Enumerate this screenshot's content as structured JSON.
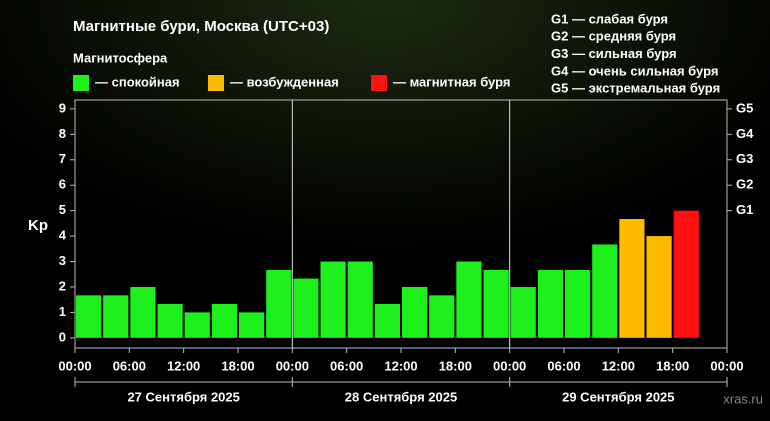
{
  "chart_data": {
    "type": "bar",
    "title": "Магнитные бури, Москва (UTC+03)",
    "subtitle": "Магнитосфера",
    "ylabel": "Kp",
    "watermark": "xras.ru",
    "x": [
      0,
      3,
      6,
      9,
      12,
      15,
      18,
      21,
      24,
      27,
      30,
      33,
      36,
      39,
      42,
      45,
      48,
      51,
      54,
      57,
      60,
      63,
      66
    ],
    "bar_width": 3,
    "series": [
      {
        "name": "— спокойная",
        "color": "#1ef01e",
        "values": [
          1.67,
          1.67,
          2,
          1.33,
          1,
          1.33,
          1,
          2.67,
          2.33,
          3,
          3,
          1.33,
          2,
          1.67,
          3,
          2.67,
          2,
          2.67,
          2.67,
          3.67,
          null,
          null,
          null
        ]
      },
      {
        "name": "— возбужденная",
        "color": "#ffbb00",
        "values": [
          null,
          null,
          null,
          null,
          null,
          null,
          null,
          null,
          null,
          null,
          null,
          null,
          null,
          null,
          null,
          null,
          null,
          null,
          null,
          null,
          4.67,
          4,
          null
        ]
      },
      {
        "name": "— магнитная буря",
        "color": "#ff1010",
        "values": [
          null,
          null,
          null,
          null,
          null,
          null,
          null,
          null,
          null,
          null,
          null,
          null,
          null,
          null,
          null,
          null,
          null,
          null,
          null,
          null,
          null,
          null,
          5
        ]
      }
    ],
    "xlim": [
      0,
      72
    ],
    "xticks": [
      {
        "value": 0,
        "label": "00:00"
      },
      {
        "value": 6,
        "label": "06:00"
      },
      {
        "value": 12,
        "label": "12:00"
      },
      {
        "value": 18,
        "label": "18:00"
      },
      {
        "value": 24,
        "label": "00:00"
      },
      {
        "value": 30,
        "label": "06:00"
      },
      {
        "value": 36,
        "label": "12:00"
      },
      {
        "value": 42,
        "label": "18:00"
      },
      {
        "value": 48,
        "label": "00:00"
      },
      {
        "value": 54,
        "label": "06:00"
      },
      {
        "value": 60,
        "label": "12:00"
      },
      {
        "value": 66,
        "label": "18:00"
      },
      {
        "value": 72,
        "label": "00:00"
      }
    ],
    "day_labels": [
      "27 Сентября 2025",
      "28 Сентября 2025",
      "29 Сентября 2025"
    ],
    "ylim": [
      -0.4,
      9.35
    ],
    "yticks": [
      0,
      1,
      2,
      3,
      4,
      5,
      6,
      7,
      8,
      9
    ],
    "y2lim": [
      -0.4,
      9.35
    ],
    "y2ticks": [
      {
        "value": 5,
        "label": "G1"
      },
      {
        "value": 6,
        "label": "G2"
      },
      {
        "value": 7,
        "label": "G3"
      },
      {
        "value": 8,
        "label": "G4"
      },
      {
        "value": 9,
        "label": "G5"
      }
    ],
    "g_scale": [
      "G1 — слабая буря",
      "G2 — средняя буря",
      "G3 — сильная буря",
      "G4 — очень сильная буря",
      "G5 — экстремальная буря"
    ]
  }
}
